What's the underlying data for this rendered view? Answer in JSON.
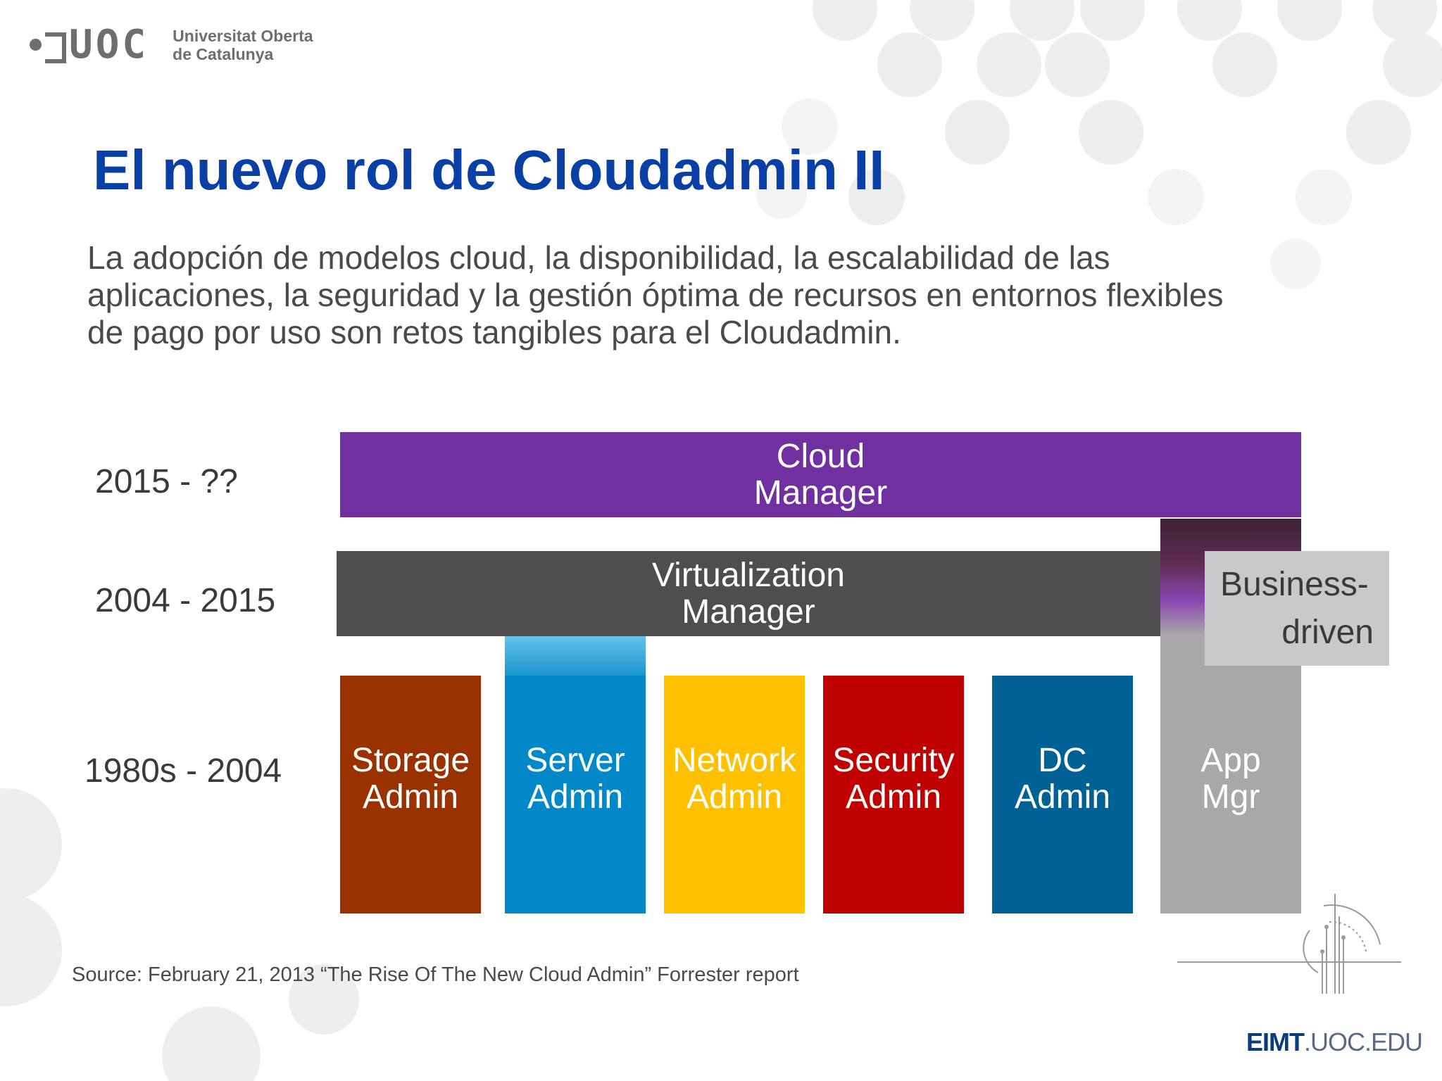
{
  "logo": {
    "wordmark": "UOC",
    "university_line1": "Universitat Oberta",
    "university_line2": "de Catalunya"
  },
  "slide": {
    "title": "El nuevo rol de Cloudadmin II",
    "intro_line1": "La adopción de modelos cloud, la disponibilidad, la escalabilidad de las",
    "intro_line2": "aplicaciones, la seguridad  y la gestión óptima de recursos en entornos flexibles",
    "intro_line3": "de pago por uso son retos tangibles para el Cloudadmin."
  },
  "diagram": {
    "eras": [
      "2015 - ??",
      "2004 - 2015",
      "1980s - 2004"
    ],
    "cloud_manager": {
      "line1": "Cloud",
      "line2": "Manager"
    },
    "virtualization_manager": {
      "line1": "Virtualization",
      "line2": "Manager"
    },
    "business_driven": {
      "line1": "Business-",
      "line2": "driven"
    },
    "roles": [
      {
        "line1": "Storage",
        "line2": "Admin",
        "color": "#9a3200"
      },
      {
        "line1": "Server",
        "line2": "Admin",
        "color": "#0088c9"
      },
      {
        "line1": "Network",
        "line2": "Admin",
        "color": "#ffc000"
      },
      {
        "line1": "Security",
        "line2": "Admin",
        "color": "#c00000"
      },
      {
        "line1": "DC",
        "line2": "Admin",
        "color": "#006294"
      },
      {
        "line1": "App",
        "line2": "Mgr",
        "color": "#a8a8aa"
      }
    ],
    "colors": {
      "cloud": "#7030a0",
      "virtualization": "#4f4d50",
      "business": "#c9c9cb",
      "title": "#0a3fa6"
    }
  },
  "source": "Source: February 21, 2013 “The Rise Of The New Cloud Admin” Forrester report",
  "footer": {
    "bold": "EIMT",
    "light": ".UOC.EDU"
  }
}
